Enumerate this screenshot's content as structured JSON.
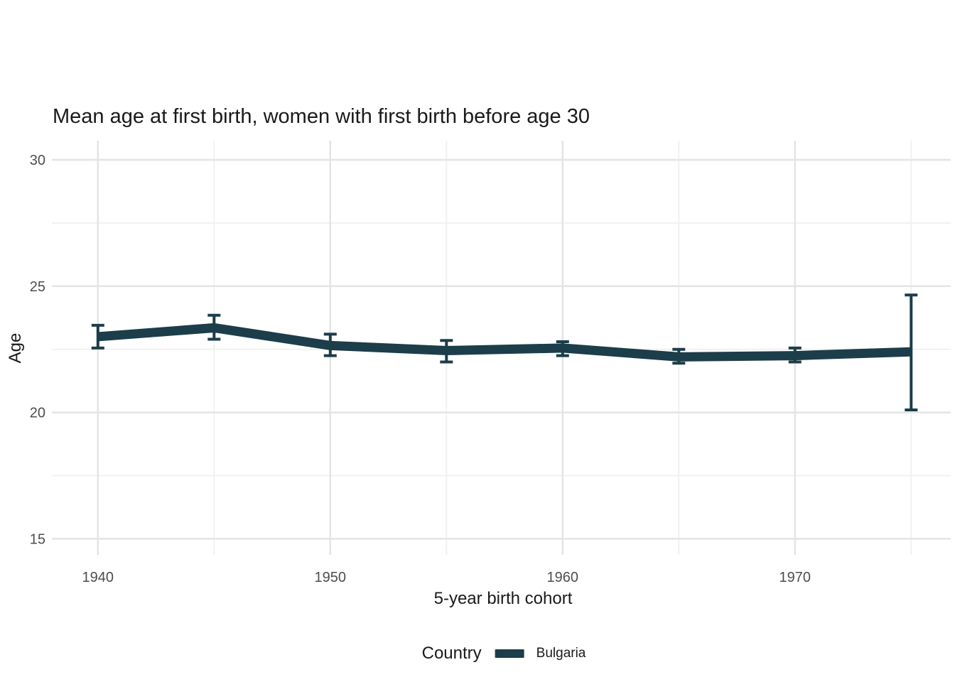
{
  "page": {
    "background_color": "#ffffff"
  },
  "chart_data": {
    "type": "line",
    "title": "Mean age at first birth, women with first birth before age 30",
    "xlabel": "5-year birth cohort",
    "ylabel": "Age",
    "x": [
      1940,
      1945,
      1950,
      1955,
      1960,
      1965,
      1970,
      1975
    ],
    "series": [
      {
        "name": "Bulgaria",
        "color": "#1c3d4a",
        "values": [
          23.0,
          23.35,
          22.65,
          22.45,
          22.55,
          22.2,
          22.25,
          22.4
        ],
        "ci_lower": [
          22.55,
          22.9,
          22.25,
          22.0,
          22.25,
          21.95,
          22.0,
          20.1
        ],
        "ci_upper": [
          23.45,
          23.85,
          23.1,
          22.85,
          22.8,
          22.5,
          22.55,
          24.65
        ]
      }
    ],
    "x_major_ticks": [
      1940,
      1950,
      1960,
      1970
    ],
    "x_minor_ticks": [
      1945,
      1955,
      1965,
      1975
    ],
    "y_major_ticks": [
      15,
      20,
      25,
      30
    ],
    "y_minor_ticks": [
      17.5,
      22.5,
      27.5
    ],
    "xlim": [
      1938,
      1976.7
    ],
    "ylim": [
      14.4,
      30.8
    ],
    "grid": true,
    "legend_position": "bottom",
    "error_bars": true,
    "colors": {
      "line": "#1c3d4a",
      "grid_major": "#e4e4e4",
      "grid_minor": "#f1f1f1",
      "tick_label": "#4d4d4d",
      "text": "#1a1a1a",
      "background": "#ffffff"
    }
  },
  "legend": {
    "title": "Country",
    "entries": [
      {
        "label": "Bulgaria",
        "color": "#1c3d4a"
      }
    ]
  }
}
